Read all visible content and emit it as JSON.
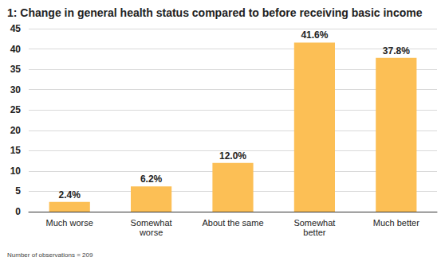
{
  "chart_data": {
    "type": "bar",
    "title": "1: Change in general health status compared to before receiving basic income",
    "footnote": "Number of observations = 209",
    "categories": [
      "Much worse",
      "Somewhat\nworse",
      "About the same",
      "Somewhat\nbetter",
      "Much better"
    ],
    "values": [
      2.4,
      6.2,
      12.0,
      41.6,
      37.8
    ],
    "value_labels": [
      "2.4%",
      "6.2%",
      "12.0%",
      "41.6%",
      "37.8%"
    ],
    "color": "#fcbf55",
    "ylim": [
      0,
      45
    ],
    "yticks": [
      0,
      5,
      10,
      15,
      20,
      25,
      30,
      35,
      40,
      45
    ],
    "grid": true,
    "data_labels": true
  }
}
